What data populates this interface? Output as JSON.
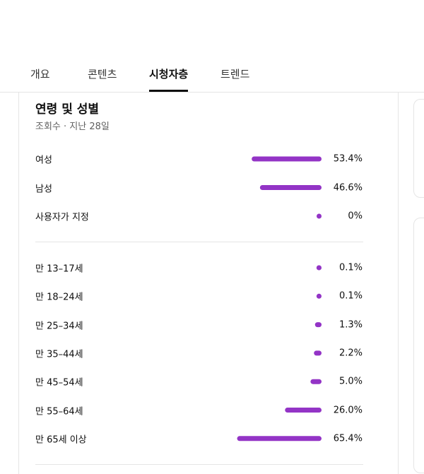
{
  "tabs": [
    "개요",
    "콘텐츠",
    "시청자층",
    "트렌드"
  ],
  "selected_tab": 2,
  "card": {
    "title": "연령 및 성별",
    "subtitle": "조회수 · 지난 28일",
    "gender": [
      {
        "label": "여성",
        "value": 53.4,
        "value_label": "53.4%"
      },
      {
        "label": "남성",
        "value": 46.6,
        "value_label": "46.6%"
      },
      {
        "label": "사용자가 지정",
        "value": 0,
        "value_label": "0%"
      }
    ],
    "age": [
      {
        "label": "만 13–17세",
        "value": 0.1,
        "value_label": "0.1%"
      },
      {
        "label": "만 18–24세",
        "value": 0.1,
        "value_label": "0.1%"
      },
      {
        "label": "만 25–34세",
        "value": 1.3,
        "value_label": "1.3%"
      },
      {
        "label": "만 35–44세",
        "value": 2.2,
        "value_label": "2.2%"
      },
      {
        "label": "만 45–54세",
        "value": 5.0,
        "value_label": "5.0%"
      },
      {
        "label": "만 55–64세",
        "value": 26.0,
        "value_label": "26.0%"
      },
      {
        "label": "만 65세 이상",
        "value": 65.4,
        "value_label": "65.4%"
      }
    ],
    "bar_color": "#9334c6"
  }
}
